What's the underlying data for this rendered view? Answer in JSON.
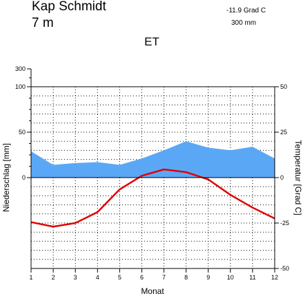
{
  "header": {
    "station": "Kap Schmidt",
    "elevation": "7 m",
    "mean_temp": "-11.9 Grad C",
    "precip_total": "300 mm",
    "climate_class": "ET"
  },
  "chart_data": {
    "type": "line",
    "title": "ET",
    "xlabel": "Monat",
    "ylabel_left": "Niederschlag [mm]",
    "ylabel_right": "Temperatur [Grad C]",
    "categories": [
      "1",
      "2",
      "3",
      "4",
      "5",
      "6",
      "7",
      "8",
      "9",
      "10",
      "11",
      "12"
    ],
    "x_ticks": [
      "1",
      "2",
      "3",
      "4",
      "5",
      "6",
      "7",
      "8",
      "9",
      "10",
      "11",
      "12"
    ],
    "y_ticks_left": [
      "300",
      "100",
      "50",
      "0"
    ],
    "y_ticks_right": [
      "50",
      "25",
      "0",
      "-25",
      "-50"
    ],
    "ylim_precip": [
      0,
      100
    ],
    "ylim_temp": [
      -50,
      50
    ],
    "grid": true,
    "series": [
      {
        "kind": "area",
        "axis": "left",
        "color": "#5aa8f5",
        "values": [
          29,
          14,
          16,
          17,
          14,
          21,
          30,
          40,
          33,
          30,
          34,
          21
        ]
      },
      {
        "kind": "line",
        "axis": "right",
        "color": "#e00000",
        "values": [
          -24.5,
          -27,
          -25,
          -19,
          -6.5,
          1,
          4.5,
          3,
          -1,
          -9.5,
          -16.5,
          -22.5
        ]
      }
    ]
  }
}
